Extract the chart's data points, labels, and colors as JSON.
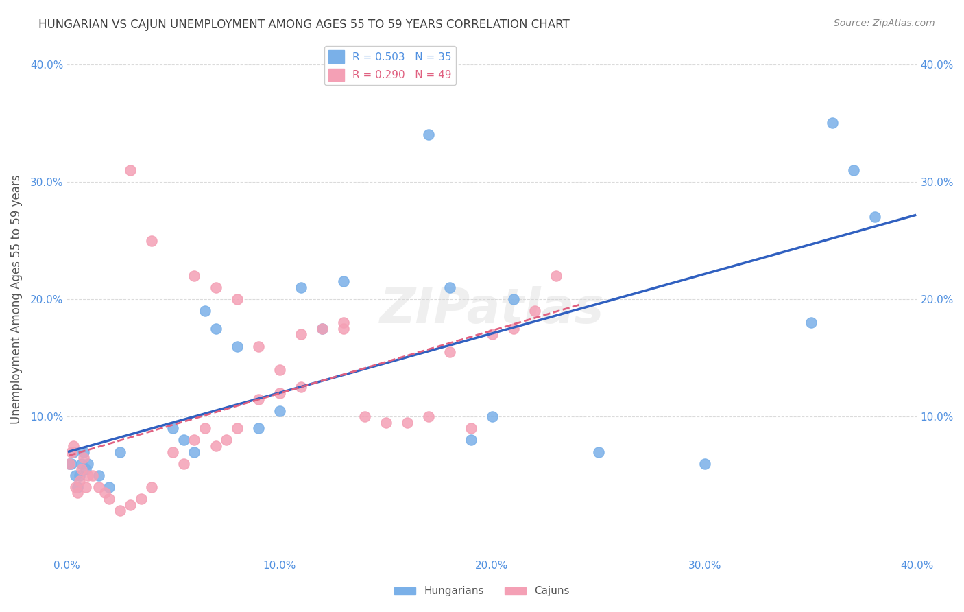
{
  "title": "HUNGARIAN VS CAJUN UNEMPLOYMENT AMONG AGES 55 TO 59 YEARS CORRELATION CHART",
  "source": "Source: ZipAtlas.com",
  "ylabel": "Unemployment Among Ages 55 to 59 years",
  "xlabel": "",
  "xlim": [
    0,
    0.4
  ],
  "ylim": [
    -0.02,
    0.42
  ],
  "xticks": [
    0.0,
    0.1,
    0.2,
    0.3,
    0.4
  ],
  "yticks": [
    0.1,
    0.2,
    0.3,
    0.4
  ],
  "xticklabels": [
    "0.0%",
    "10.0%",
    "20.0%",
    "30.0%",
    "40.0%"
  ],
  "yticklabels": [
    "10.0%",
    "20.0%",
    "30.0%",
    "40.0%"
  ],
  "right_yticklabels": [
    "10.0%",
    "20.0%",
    "30.0%",
    "40.0%"
  ],
  "legend_entries": [
    {
      "label": "R = 0.503   N = 35",
      "color": "#8ab4e8"
    },
    {
      "label": "R = 0.290   N = 49",
      "color": "#f4a0b0"
    }
  ],
  "hungarian_color": "#7ab0e8",
  "cajun_color": "#f4a0b5",
  "hungarian_line_color": "#3060c0",
  "cajun_line_color": "#e06080",
  "background_color": "#ffffff",
  "grid_color": "#cccccc",
  "title_color": "#404040",
  "axis_color": "#5090e0",
  "watermark_text": "ZIPatlas",
  "hungarian_x": [
    0.001,
    0.002,
    0.003,
    0.004,
    0.005,
    0.006,
    0.007,
    0.008,
    0.009,
    0.01,
    0.015,
    0.02,
    0.025,
    0.05,
    0.055,
    0.06,
    0.065,
    0.07,
    0.08,
    0.09,
    0.1,
    0.11,
    0.12,
    0.13,
    0.17,
    0.18,
    0.19,
    0.2,
    0.21,
    0.25,
    0.3,
    0.35,
    0.36,
    0.37,
    0.38
  ],
  "hungarian_y": [
    0.06,
    0.06,
    0.07,
    0.05,
    0.04,
    0.05,
    0.06,
    0.07,
    0.055,
    0.06,
    0.05,
    0.04,
    0.07,
    0.09,
    0.08,
    0.07,
    0.19,
    0.175,
    0.16,
    0.09,
    0.105,
    0.21,
    0.175,
    0.215,
    0.34,
    0.21,
    0.08,
    0.1,
    0.2,
    0.07,
    0.06,
    0.18,
    0.35,
    0.31,
    0.27
  ],
  "cajun_x": [
    0.001,
    0.002,
    0.003,
    0.004,
    0.005,
    0.006,
    0.007,
    0.008,
    0.009,
    0.01,
    0.012,
    0.015,
    0.018,
    0.02,
    0.025,
    0.03,
    0.035,
    0.04,
    0.05,
    0.055,
    0.06,
    0.065,
    0.07,
    0.075,
    0.08,
    0.09,
    0.1,
    0.11,
    0.12,
    0.13,
    0.14,
    0.15,
    0.16,
    0.17,
    0.18,
    0.19,
    0.2,
    0.21,
    0.22,
    0.23,
    0.03,
    0.04,
    0.06,
    0.07,
    0.08,
    0.09,
    0.1,
    0.11,
    0.13
  ],
  "cajun_y": [
    0.06,
    0.07,
    0.075,
    0.04,
    0.035,
    0.045,
    0.055,
    0.065,
    0.04,
    0.05,
    0.05,
    0.04,
    0.035,
    0.03,
    0.02,
    0.025,
    0.03,
    0.04,
    0.07,
    0.06,
    0.08,
    0.09,
    0.075,
    0.08,
    0.09,
    0.115,
    0.12,
    0.125,
    0.175,
    0.175,
    0.1,
    0.095,
    0.095,
    0.1,
    0.155,
    0.09,
    0.17,
    0.175,
    0.19,
    0.22,
    0.31,
    0.25,
    0.22,
    0.21,
    0.2,
    0.16,
    0.14,
    0.17,
    0.18
  ]
}
